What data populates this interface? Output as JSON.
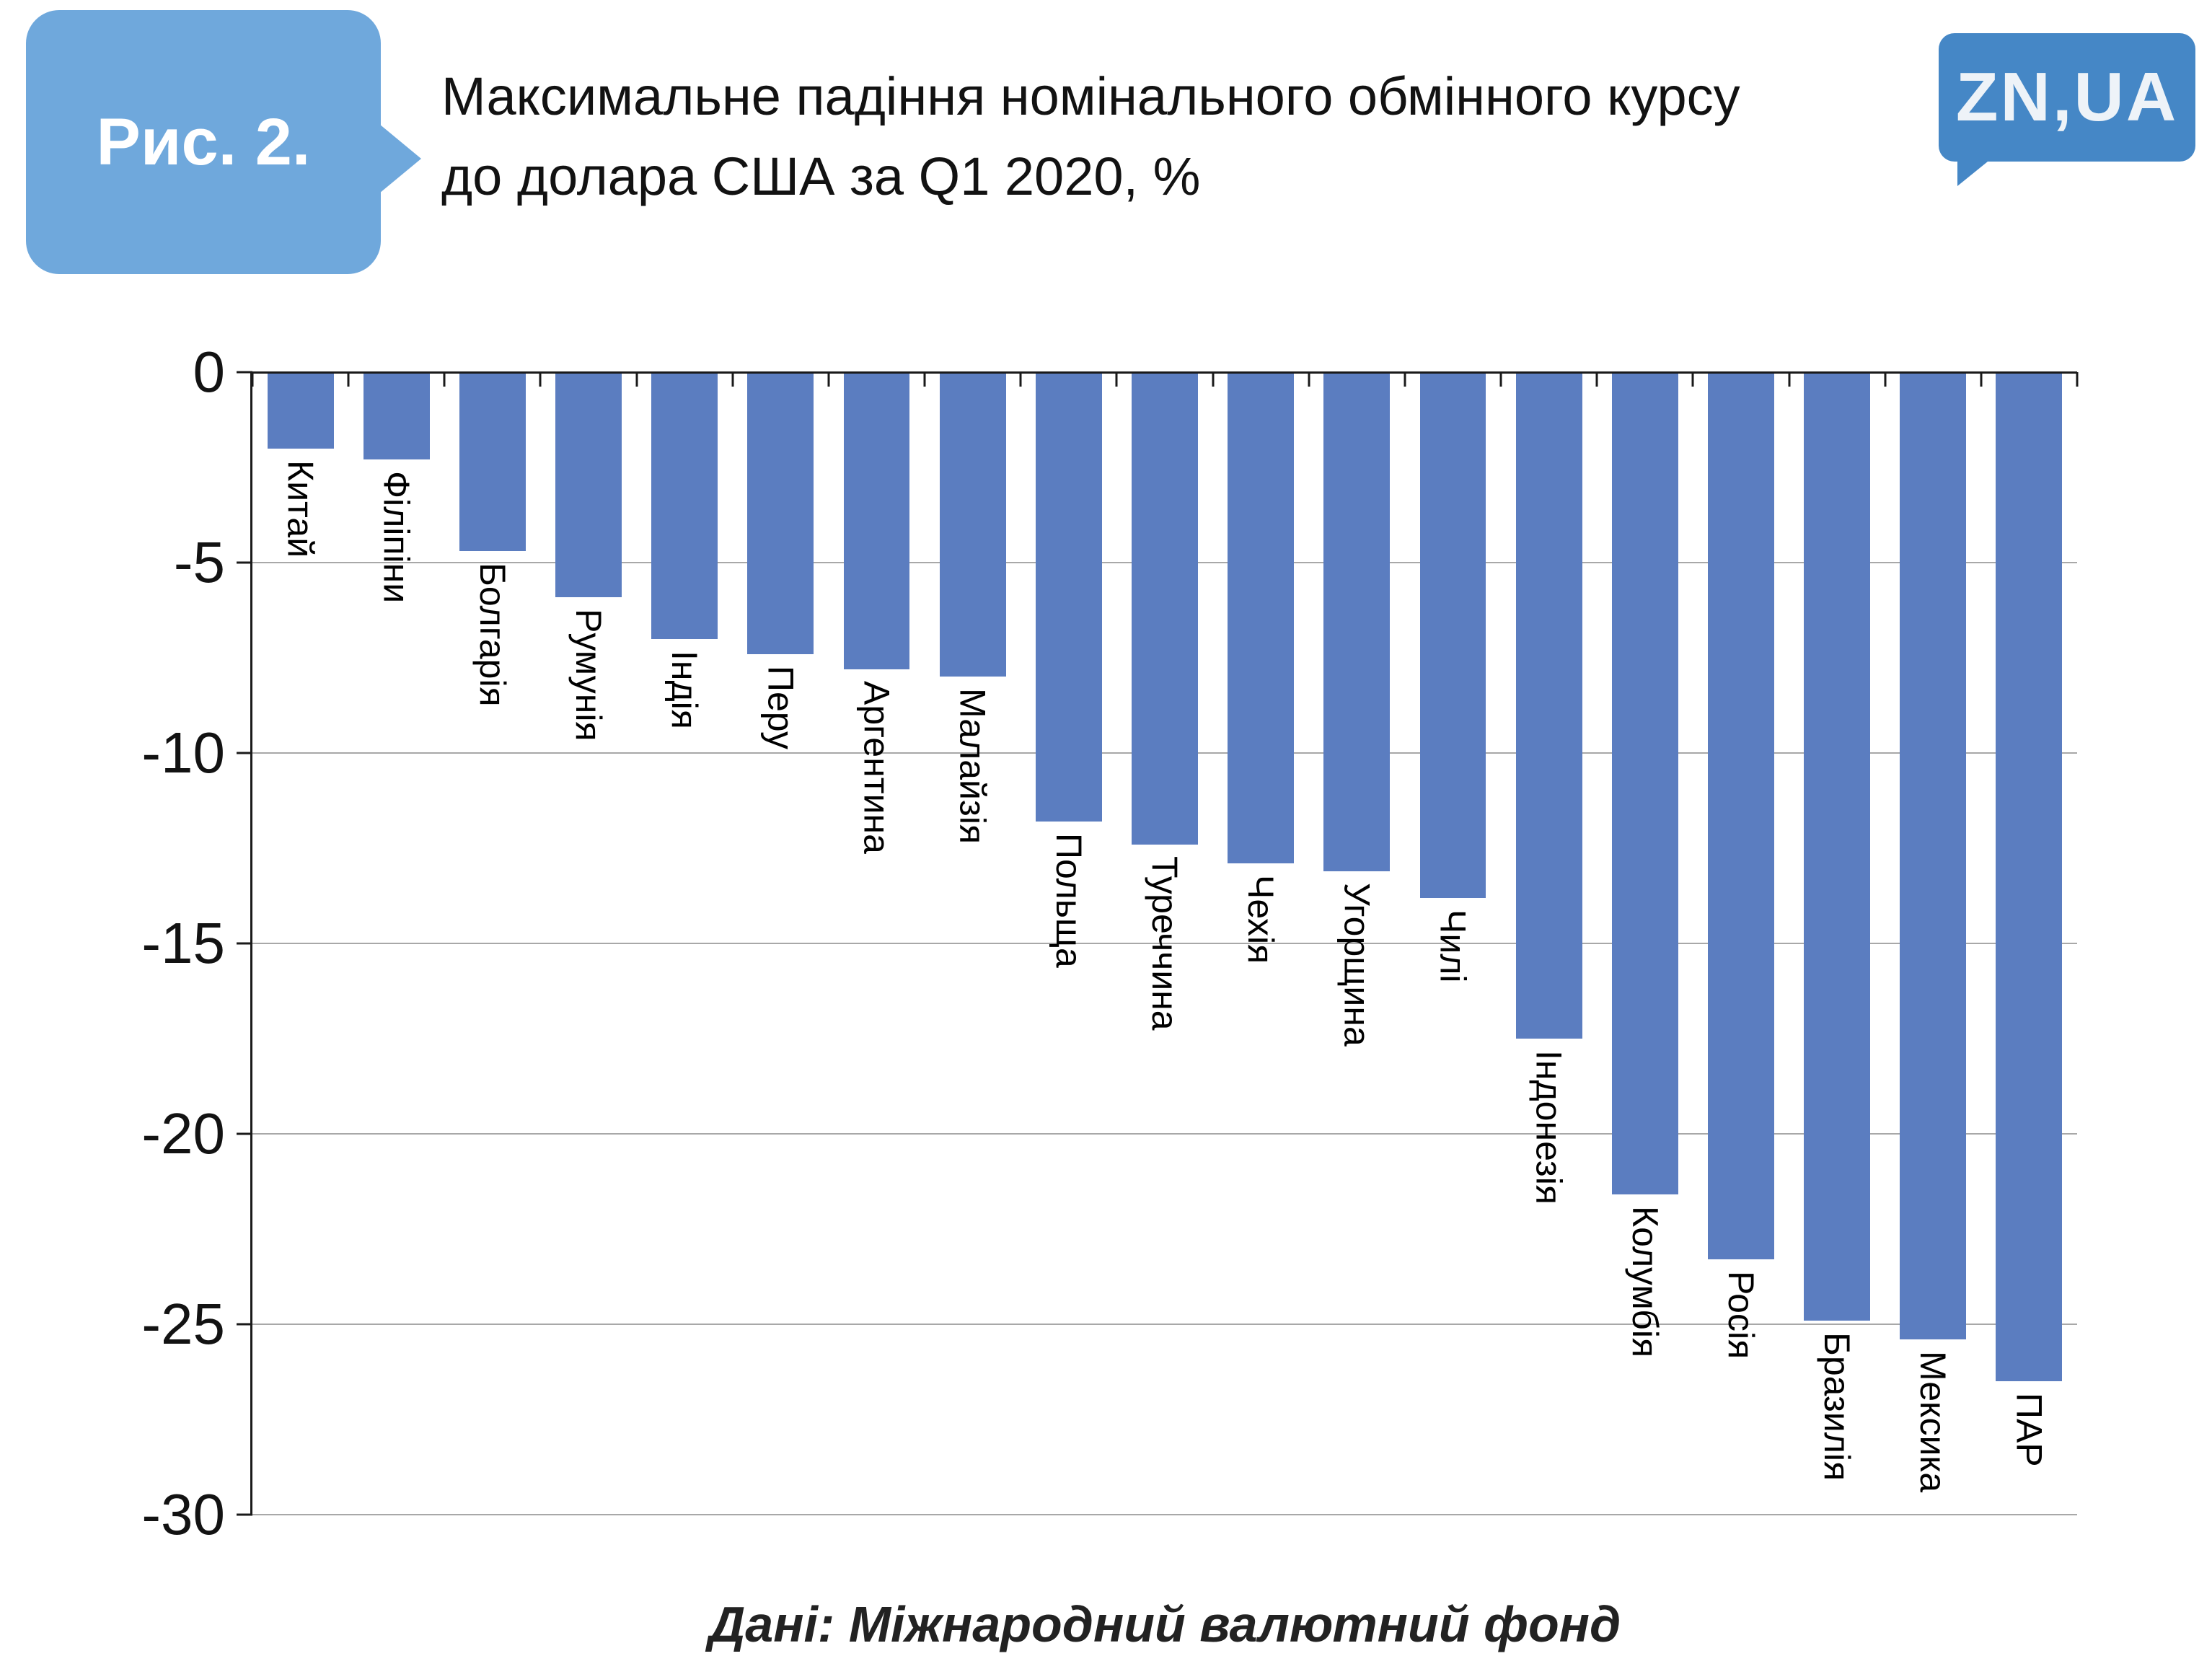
{
  "header": {
    "figure_label": "Рис. 2.",
    "title_line1": "Максимальне падіння номінального обмінного курсу",
    "title_line2": "до долара США за Q1 2020, %",
    "logo_text": "ZN,UA"
  },
  "footer": {
    "source": "Дані: Міжнародний валютний фонд"
  },
  "colors": {
    "bar": "#5b7dc0",
    "badge": "#6fa8dc",
    "logo": "#4587c6",
    "gridline": "#a8a8a8",
    "axis": "#1a1a1a"
  },
  "chart_data": {
    "type": "bar",
    "orientation": "vertical-negative",
    "title": "Максимальне падіння номінального обмінного курсу до долара США за Q1 2020, %",
    "categories": [
      "Китай",
      "Філіпіни",
      "Болгарія",
      "Румунія",
      "Індія",
      "Перу",
      "Аргентина",
      "Малайзія",
      "Польща",
      "Туреччина",
      "Чехія",
      "Угорщина",
      "Чилі",
      "Індонезія",
      "Колумбія",
      "Росія",
      "Бразилія",
      "Мексика",
      "ПАР"
    ],
    "values": [
      -2.0,
      -2.3,
      -4.7,
      -5.9,
      -7.0,
      -7.4,
      -7.8,
      -8.0,
      -11.8,
      -12.4,
      -12.9,
      -13.1,
      -13.8,
      -17.5,
      -21.6,
      -23.3,
      -24.9,
      -25.4,
      -26.5
    ],
    "y_ticks": [
      0,
      -5,
      -10,
      -15,
      -20,
      -25,
      -30
    ],
    "ylim": [
      -30,
      0
    ],
    "grid": true,
    "legend": "none",
    "source": "Дані: Міжнародний валютний фонд"
  }
}
